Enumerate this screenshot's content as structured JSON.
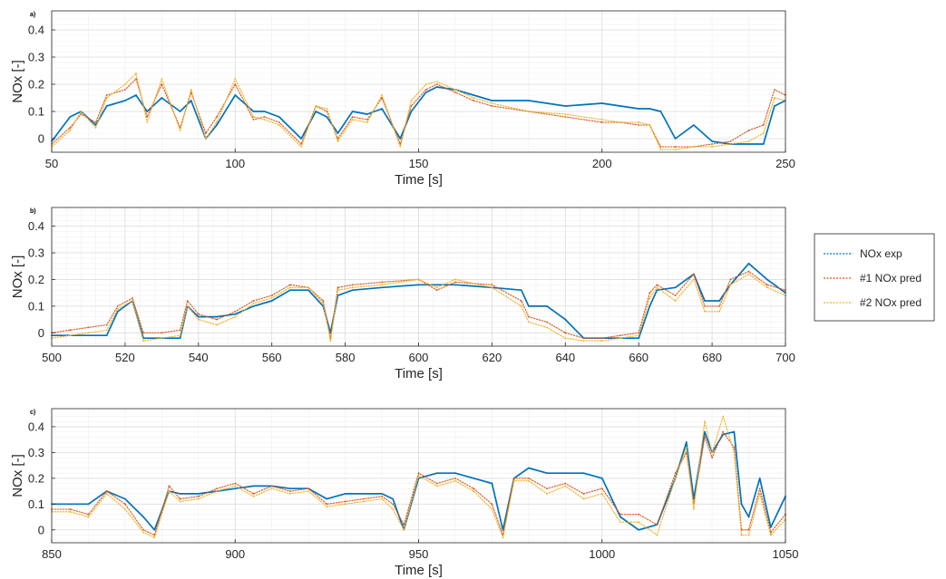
{
  "chart_data": [
    {
      "type": "line",
      "panel": "a)",
      "xlabel": "Time [s]",
      "ylabel": "NOx [-]",
      "xlim": [
        50,
        250
      ],
      "ylim": [
        -0.05,
        0.47
      ],
      "xticks": [
        50,
        100,
        150,
        200,
        250
      ],
      "yticks": [
        0,
        0.1,
        0.2,
        0.3,
        0.4
      ],
      "grid": "on (major and minor)",
      "series": [
        {
          "name": "NOx exp",
          "color": "#0072BD",
          "x": [
            50,
            55,
            58,
            62,
            65,
            70,
            73,
            76,
            80,
            85,
            88,
            92,
            95,
            100,
            105,
            108,
            112,
            118,
            122,
            125,
            128,
            132,
            136,
            140,
            145,
            148,
            152,
            155,
            160,
            165,
            170,
            180,
            190,
            200,
            205,
            210,
            213,
            216,
            220,
            225,
            230,
            235,
            240,
            244,
            247,
            250
          ],
          "y": [
            -0.01,
            0.08,
            0.1,
            0.05,
            0.12,
            0.14,
            0.16,
            0.1,
            0.15,
            0.1,
            0.14,
            0.0,
            0.05,
            0.16,
            0.1,
            0.1,
            0.08,
            0.0,
            0.1,
            0.08,
            0.02,
            0.1,
            0.09,
            0.11,
            0.0,
            0.1,
            0.17,
            0.19,
            0.18,
            0.16,
            0.14,
            0.14,
            0.12,
            0.13,
            0.12,
            0.11,
            0.11,
            0.1,
            0.0,
            0.05,
            -0.01,
            -0.02,
            -0.02,
            -0.02,
            0.12,
            0.14
          ]
        },
        {
          "name": "#1 NOx pred",
          "color": "#D95319",
          "x": [
            50,
            55,
            58,
            62,
            65,
            70,
            73,
            76,
            80,
            85,
            88,
            92,
            95,
            100,
            105,
            108,
            112,
            118,
            122,
            125,
            128,
            132,
            136,
            140,
            145,
            148,
            152,
            155,
            160,
            165,
            170,
            180,
            190,
            200,
            205,
            210,
            213,
            216,
            220,
            225,
            230,
            235,
            240,
            244,
            247,
            250
          ],
          "y": [
            -0.02,
            0.04,
            0.09,
            0.06,
            0.16,
            0.18,
            0.22,
            0.08,
            0.2,
            0.04,
            0.17,
            0.02,
            0.08,
            0.2,
            0.07,
            0.08,
            0.06,
            -0.02,
            0.12,
            0.1,
            0.0,
            0.08,
            0.07,
            0.15,
            -0.02,
            0.12,
            0.18,
            0.2,
            0.17,
            0.14,
            0.12,
            0.1,
            0.08,
            0.06,
            0.06,
            0.05,
            0.05,
            -0.03,
            -0.03,
            -0.03,
            -0.02,
            -0.01,
            0.03,
            0.05,
            0.18,
            0.16
          ]
        },
        {
          "name": "#2 NOx pred",
          "color": "#EDB120",
          "x": [
            50,
            55,
            58,
            62,
            65,
            70,
            73,
            76,
            80,
            85,
            88,
            92,
            95,
            100,
            105,
            108,
            112,
            118,
            122,
            125,
            128,
            132,
            136,
            140,
            145,
            148,
            152,
            155,
            160,
            165,
            170,
            180,
            190,
            200,
            205,
            210,
            213,
            216,
            220,
            225,
            230,
            235,
            240,
            244,
            247,
            250
          ],
          "y": [
            -0.03,
            0.03,
            0.1,
            0.04,
            0.15,
            0.2,
            0.24,
            0.06,
            0.22,
            0.03,
            0.18,
            0.0,
            0.06,
            0.22,
            0.08,
            0.07,
            0.05,
            -0.03,
            0.12,
            0.11,
            -0.01,
            0.07,
            0.06,
            0.16,
            -0.03,
            0.14,
            0.2,
            0.21,
            0.18,
            0.15,
            0.13,
            0.1,
            0.09,
            0.07,
            0.06,
            0.06,
            0.05,
            -0.04,
            -0.04,
            -0.03,
            -0.03,
            -0.02,
            -0.01,
            0.02,
            0.15,
            0.14
          ]
        }
      ]
    },
    {
      "type": "line",
      "panel": "b)",
      "xlabel": "Time [s]",
      "ylabel": "NOx [-]",
      "xlim": [
        500,
        700
      ],
      "ylim": [
        -0.05,
        0.47
      ],
      "xticks": [
        500,
        520,
        540,
        560,
        580,
        600,
        620,
        640,
        660,
        680,
        700
      ],
      "yticks": [
        0,
        0.1,
        0.2,
        0.3,
        0.4
      ],
      "grid": "on (major and minor)",
      "series": [
        {
          "name": "NOx exp",
          "color": "#0072BD",
          "x": [
            500,
            505,
            510,
            515,
            518,
            522,
            525,
            530,
            535,
            537,
            540,
            545,
            550,
            555,
            560,
            565,
            570,
            574,
            576,
            578,
            582,
            590,
            600,
            605,
            610,
            620,
            628,
            630,
            635,
            640,
            645,
            650,
            655,
            660,
            663,
            665,
            670,
            675,
            678,
            682,
            685,
            690,
            695,
            700
          ],
          "y": [
            -0.01,
            -0.01,
            -0.01,
            -0.01,
            0.08,
            0.12,
            -0.02,
            -0.02,
            -0.02,
            0.1,
            0.06,
            0.06,
            0.07,
            0.1,
            0.12,
            0.16,
            0.16,
            0.1,
            0.0,
            0.14,
            0.16,
            0.17,
            0.18,
            0.18,
            0.18,
            0.17,
            0.16,
            0.1,
            0.1,
            0.05,
            -0.02,
            -0.02,
            -0.02,
            -0.02,
            0.1,
            0.16,
            0.17,
            0.22,
            0.12,
            0.12,
            0.18,
            0.26,
            0.2,
            0.15
          ]
        },
        {
          "name": "#1 NOx pred",
          "color": "#D95319",
          "x": [
            500,
            505,
            510,
            515,
            518,
            522,
            525,
            530,
            535,
            537,
            540,
            545,
            550,
            555,
            560,
            565,
            570,
            574,
            576,
            578,
            582,
            590,
            600,
            605,
            610,
            620,
            628,
            630,
            635,
            640,
            645,
            650,
            655,
            660,
            663,
            665,
            670,
            675,
            678,
            682,
            685,
            690,
            695,
            700
          ],
          "y": [
            0.0,
            0.01,
            0.02,
            0.03,
            0.1,
            0.13,
            0.0,
            0.0,
            0.01,
            0.12,
            0.07,
            0.05,
            0.08,
            0.12,
            0.14,
            0.18,
            0.17,
            0.12,
            -0.02,
            0.17,
            0.18,
            0.19,
            0.2,
            0.16,
            0.19,
            0.18,
            0.12,
            0.06,
            0.04,
            0.0,
            -0.02,
            -0.02,
            -0.01,
            0.0,
            0.15,
            0.18,
            0.14,
            0.22,
            0.1,
            0.1,
            0.2,
            0.23,
            0.18,
            0.16
          ]
        },
        {
          "name": "#2 NOx pred",
          "color": "#EDB120",
          "x": [
            500,
            505,
            510,
            515,
            518,
            522,
            525,
            530,
            535,
            537,
            540,
            545,
            550,
            555,
            560,
            565,
            570,
            574,
            576,
            578,
            582,
            590,
            600,
            605,
            610,
            620,
            628,
            630,
            635,
            640,
            645,
            650,
            655,
            660,
            663,
            665,
            670,
            675,
            678,
            682,
            685,
            690,
            695,
            700
          ],
          "y": [
            -0.02,
            -0.01,
            0.0,
            0.01,
            0.09,
            0.12,
            -0.03,
            -0.02,
            -0.01,
            0.1,
            0.05,
            0.03,
            0.06,
            0.11,
            0.13,
            0.17,
            0.17,
            0.11,
            -0.03,
            0.16,
            0.17,
            0.18,
            0.2,
            0.17,
            0.2,
            0.17,
            0.1,
            0.04,
            0.02,
            -0.02,
            -0.03,
            -0.03,
            -0.02,
            -0.01,
            0.13,
            0.17,
            0.12,
            0.2,
            0.08,
            0.08,
            0.18,
            0.22,
            0.17,
            0.14
          ]
        }
      ]
    },
    {
      "type": "line",
      "panel": "c)",
      "xlabel": "Time [s]",
      "ylabel": "NOx [-]",
      "xlim": [
        850,
        1050
      ],
      "ylim": [
        -0.05,
        0.47
      ],
      "xticks": [
        850,
        900,
        950,
        1000,
        1050
      ],
      "yticks": [
        0,
        0.1,
        0.2,
        0.3,
        0.4
      ],
      "grid": "on (major and minor)",
      "series": [
        {
          "name": "NOx exp",
          "color": "#0072BD",
          "x": [
            850,
            855,
            860,
            865,
            870,
            875,
            878,
            882,
            885,
            890,
            895,
            900,
            905,
            910,
            915,
            920,
            925,
            930,
            935,
            940,
            943,
            946,
            950,
            955,
            960,
            965,
            970,
            973,
            976,
            980,
            985,
            990,
            995,
            1000,
            1005,
            1010,
            1015,
            1020,
            1023,
            1025,
            1028,
            1030,
            1033,
            1036,
            1038,
            1040,
            1043,
            1046,
            1050
          ],
          "y": [
            0.1,
            0.1,
            0.1,
            0.15,
            0.12,
            0.05,
            0.0,
            0.15,
            0.14,
            0.14,
            0.15,
            0.16,
            0.17,
            0.17,
            0.16,
            0.16,
            0.12,
            0.14,
            0.14,
            0.14,
            0.12,
            0.0,
            0.2,
            0.22,
            0.22,
            0.2,
            0.18,
            0.0,
            0.2,
            0.24,
            0.22,
            0.22,
            0.22,
            0.2,
            0.05,
            0.0,
            0.02,
            0.2,
            0.34,
            0.12,
            0.38,
            0.3,
            0.37,
            0.38,
            0.1,
            0.05,
            0.2,
            0.01,
            0.13
          ]
        },
        {
          "name": "#1 NOx pred",
          "color": "#D95319",
          "x": [
            850,
            855,
            860,
            865,
            870,
            875,
            878,
            882,
            885,
            890,
            895,
            900,
            905,
            910,
            915,
            920,
            925,
            930,
            935,
            940,
            943,
            946,
            950,
            955,
            960,
            965,
            970,
            973,
            976,
            980,
            985,
            990,
            995,
            1000,
            1005,
            1010,
            1015,
            1020,
            1023,
            1025,
            1028,
            1030,
            1033,
            1036,
            1038,
            1040,
            1043,
            1046,
            1050
          ],
          "y": [
            0.08,
            0.08,
            0.06,
            0.15,
            0.1,
            0.0,
            -0.02,
            0.17,
            0.12,
            0.13,
            0.16,
            0.18,
            0.14,
            0.17,
            0.15,
            0.16,
            0.1,
            0.11,
            0.12,
            0.13,
            0.1,
            0.02,
            0.22,
            0.18,
            0.2,
            0.16,
            0.1,
            -0.02,
            0.2,
            0.2,
            0.16,
            0.18,
            0.14,
            0.16,
            0.06,
            0.06,
            0.02,
            0.22,
            0.3,
            0.1,
            0.36,
            0.28,
            0.38,
            0.32,
            0.0,
            0.0,
            0.16,
            -0.01,
            0.06
          ]
        },
        {
          "name": "#2 NOx pred",
          "color": "#EDB120",
          "x": [
            850,
            855,
            860,
            865,
            870,
            875,
            878,
            882,
            885,
            890,
            895,
            900,
            905,
            910,
            915,
            920,
            925,
            930,
            935,
            940,
            943,
            946,
            950,
            955,
            960,
            965,
            970,
            973,
            976,
            980,
            985,
            990,
            995,
            1000,
            1005,
            1010,
            1015,
            1020,
            1023,
            1025,
            1028,
            1030,
            1033,
            1036,
            1038,
            1040,
            1043,
            1046,
            1050
          ],
          "y": [
            0.07,
            0.07,
            0.05,
            0.14,
            0.08,
            -0.01,
            -0.03,
            0.15,
            0.11,
            0.12,
            0.15,
            0.17,
            0.13,
            0.16,
            0.14,
            0.15,
            0.09,
            0.1,
            0.11,
            0.12,
            0.08,
            0.0,
            0.21,
            0.17,
            0.19,
            0.15,
            0.08,
            -0.03,
            0.19,
            0.19,
            0.14,
            0.17,
            0.12,
            0.14,
            0.03,
            0.03,
            -0.02,
            0.2,
            0.32,
            0.08,
            0.42,
            0.3,
            0.44,
            0.3,
            -0.02,
            -0.02,
            0.14,
            -0.02,
            0.04
          ]
        }
      ]
    }
  ],
  "legend": {
    "placement": "right",
    "entries": [
      "NOx exp",
      "#1 NOx pred",
      "#2 NOx pred"
    ]
  }
}
